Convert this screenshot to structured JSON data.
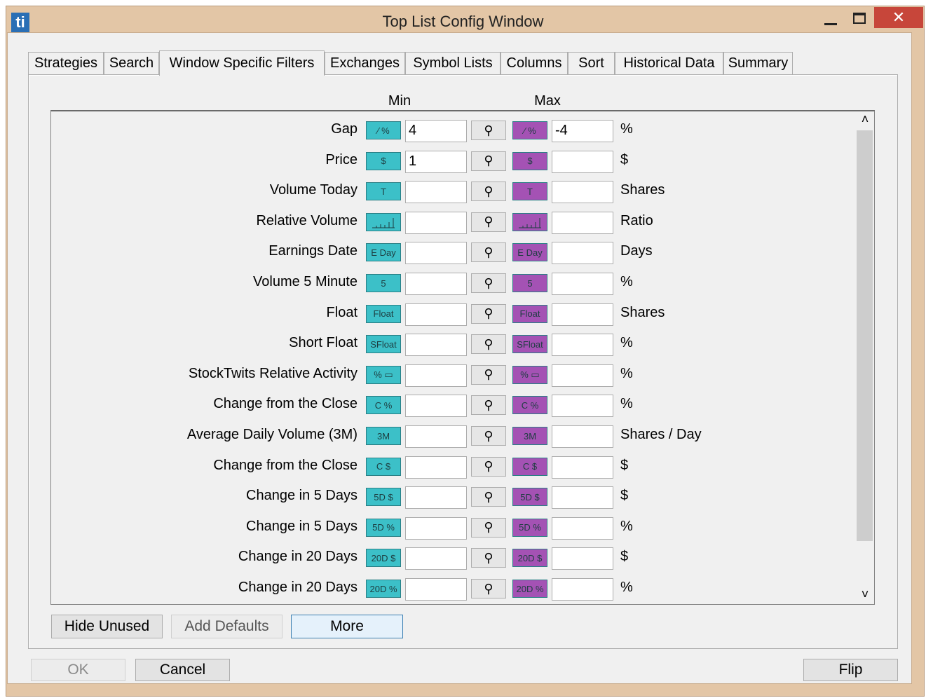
{
  "window": {
    "logo": "ti",
    "title": "Top List Config Window"
  },
  "tabs": [
    {
      "label": "Strategies"
    },
    {
      "label": "Search"
    },
    {
      "label": "Window Specific Filters",
      "selected": true
    },
    {
      "label": "Exchanges"
    },
    {
      "label": "Symbol Lists"
    },
    {
      "label": "Columns"
    },
    {
      "label": "Sort"
    },
    {
      "label": "Historical Data"
    },
    {
      "label": "Summary"
    }
  ],
  "headers": {
    "min": "Min",
    "max": "Max"
  },
  "filters": [
    {
      "label": "Gap",
      "icon": "⁄ %",
      "min": "4",
      "max": "-4",
      "unit": "%"
    },
    {
      "label": "Price",
      "icon": "$",
      "min": "1",
      "unit": "$"
    },
    {
      "label": "Volume Today",
      "icon": "T",
      "unit": "Shares"
    },
    {
      "label": "Relative Volume",
      "unit": "Ratio"
    },
    {
      "label": "Earnings Date",
      "icon": "E Day",
      "unit": "Days"
    },
    {
      "label": "Volume 5 Minute",
      "icon": "5",
      "unit": "%"
    },
    {
      "label": "Float",
      "icon": "Float",
      "unit": "Shares"
    },
    {
      "label": "Short Float",
      "icon": "SFloat",
      "unit": "%"
    },
    {
      "label": "StockTwits Relative Activity",
      "icon": "% ▭",
      "unit": "%"
    },
    {
      "label": "Change from the Close",
      "icon": "C %",
      "unit": "%"
    },
    {
      "label": "Average Daily Volume (3M)",
      "icon": "3M",
      "unit": "Shares / Day"
    },
    {
      "label": "Change from the Close",
      "icon": "C $",
      "unit": "$"
    },
    {
      "label": "Change in 5 Days",
      "icon": "5D $",
      "unit": "$"
    },
    {
      "label": "Change in 5 Days",
      "icon": "5D %",
      "unit": "%"
    },
    {
      "label": "Change in 20 Days",
      "icon": "20D $",
      "unit": "$"
    },
    {
      "label": "Change in 20 Days",
      "icon": "20D %",
      "unit": "%"
    }
  ],
  "buttons": {
    "hide_unused": "Hide Unused",
    "add_defaults": "Add Defaults",
    "more": "More",
    "ok": "OK",
    "cancel": "Cancel",
    "flip": "Flip"
  }
}
